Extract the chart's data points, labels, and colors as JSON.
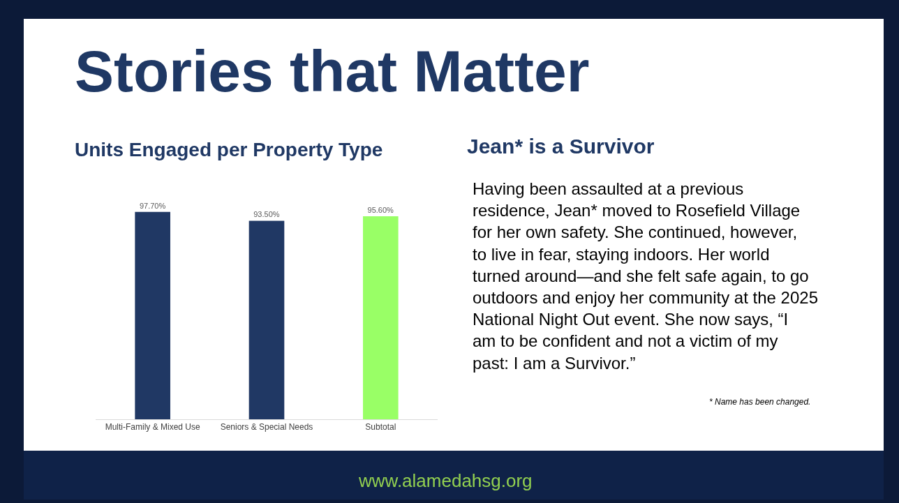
{
  "chart_data": {
    "type": "bar",
    "title": "Units Engaged per Property Type",
    "categories": [
      "Multi-Family & Mixed Use",
      "Seniors & Special Needs",
      "Subtotal"
    ],
    "values": [
      97.7,
      93.5,
      95.6
    ],
    "colors": [
      "#203864",
      "#203864",
      "#99ff66"
    ],
    "value_labels": [
      "97.70%",
      "93.50%",
      "95.60%"
    ],
    "tick_labels": "x",
    "legend": false,
    "annotations": [
      "Stories that Matter",
      "Jean* is a Survivor",
      "Having been assaulted at a previous residence, Jean* moved to Rosefield Village for her own safety. She continued, however, to live in fear, staying indoors. Her world turned around—and she felt safe again, to go outdoors and enjoy her community at the 2025 National Night Out event. She now says, “I am to be confident and not a victim of my past: I am a Survivor.”",
      "* Name has been changed.",
      "www.alamedahsg.org"
    ]
  }
}
